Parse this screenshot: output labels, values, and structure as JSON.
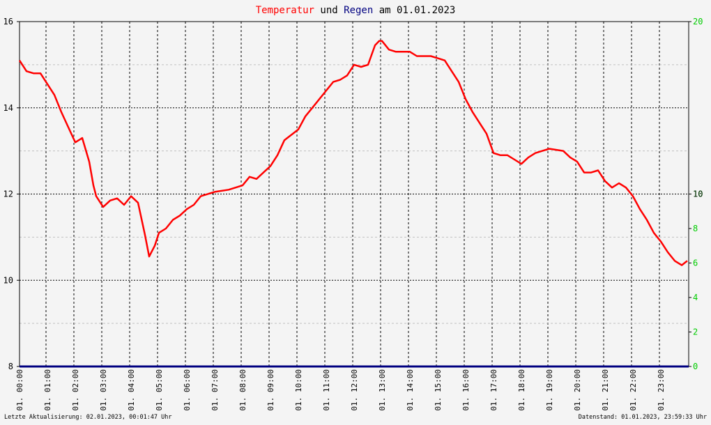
{
  "title": {
    "part1": "Temperatur",
    "part2": " und ",
    "part3": "Regen",
    "part4": " am 01.01.2023"
  },
  "colors": {
    "temperature": "#ff0000",
    "rain": "#000080",
    "left_axis_text": "#000000",
    "right_axis_text": "#00cc00",
    "grid": "#000000",
    "background": "#f4f4f4"
  },
  "footer": {
    "left": "Letzte Aktualisierung: 02.01.2023, 00:01:47 Uhr",
    "right": "Datenstand: 01.01.2023, 23:59:33 Uhr"
  },
  "chart_data": {
    "type": "line",
    "title": "Temperatur und Regen am 01.01.2023",
    "x_tick_labels": [
      "01. 00:00",
      "01. 01:00",
      "01. 02:00",
      "01. 03:00",
      "01. 04:00",
      "01. 05:00",
      "01. 06:00",
      "01. 07:00",
      "01. 08:00",
      "01. 09:00",
      "01. 10:00",
      "01. 11:00",
      "01. 12:00",
      "01. 13:00",
      "01. 14:00",
      "01. 15:00",
      "01. 16:00",
      "01. 17:00",
      "01. 18:00",
      "01. 19:00",
      "01. 20:00",
      "01. 21:00",
      "01. 22:00",
      "01. 23:00"
    ],
    "y_left": {
      "range": [
        8,
        16
      ],
      "ticks": [
        8,
        10,
        12,
        14,
        16
      ]
    },
    "y_right": {
      "range": [
        0,
        20
      ],
      "ticks": [
        0,
        2,
        4,
        6,
        8,
        10,
        20
      ]
    },
    "grid": true,
    "series": [
      {
        "name": "Temperatur",
        "axis": "left",
        "x_hours": [
          0.0,
          0.25,
          0.5,
          0.75,
          1.0,
          1.25,
          1.5,
          1.75,
          2.0,
          2.25,
          2.5,
          2.65,
          2.75,
          3.0,
          3.25,
          3.5,
          3.75,
          4.0,
          4.25,
          4.5,
          4.65,
          4.85,
          5.0,
          5.25,
          5.5,
          5.75,
          6.0,
          6.25,
          6.5,
          7.0,
          7.5,
          8.0,
          8.25,
          8.5,
          9.0,
          9.25,
          9.5,
          10.0,
          10.25,
          10.5,
          11.0,
          11.25,
          11.5,
          11.75,
          12.0,
          12.25,
          12.5,
          12.75,
          12.9,
          13.0,
          13.25,
          13.5,
          14.0,
          14.25,
          14.5,
          14.75,
          15.0,
          15.25,
          15.5,
          15.75,
          16.0,
          16.25,
          16.5,
          16.75,
          17.0,
          17.25,
          17.5,
          17.75,
          18.0,
          18.25,
          18.5,
          18.75,
          19.0,
          19.5,
          19.75,
          20.0,
          20.25,
          20.5,
          20.75,
          21.0,
          21.25,
          21.5,
          21.75,
          22.0,
          22.25,
          22.5,
          22.75,
          23.0,
          23.25,
          23.5,
          23.75,
          23.95
        ],
        "values": [
          15.1,
          14.85,
          14.8,
          14.8,
          14.55,
          14.3,
          13.9,
          13.55,
          13.2,
          13.3,
          12.75,
          12.2,
          11.95,
          11.7,
          11.85,
          11.9,
          11.75,
          11.95,
          11.8,
          11.05,
          10.55,
          10.8,
          11.1,
          11.2,
          11.4,
          11.5,
          11.65,
          11.75,
          11.95,
          12.05,
          12.1,
          12.2,
          12.4,
          12.35,
          12.65,
          12.9,
          13.25,
          13.5,
          13.8,
          14.0,
          14.4,
          14.6,
          14.65,
          14.75,
          15.0,
          14.95,
          15.0,
          15.45,
          15.55,
          15.55,
          15.35,
          15.3,
          15.3,
          15.2,
          15.2,
          15.2,
          15.15,
          15.1,
          14.85,
          14.6,
          14.2,
          13.9,
          13.65,
          13.4,
          12.95,
          12.9,
          12.9,
          12.8,
          12.7,
          12.85,
          12.95,
          13.0,
          13.05,
          13.0,
          12.85,
          12.75,
          12.5,
          12.5,
          12.55,
          12.3,
          12.15,
          12.25,
          12.15,
          11.95,
          11.65,
          11.4,
          11.1,
          10.9,
          10.65,
          10.45,
          10.35,
          10.45
        ]
      },
      {
        "name": "Regen",
        "axis": "right",
        "x_hours": [
          0,
          24
        ],
        "values": [
          0,
          0
        ]
      }
    ]
  }
}
